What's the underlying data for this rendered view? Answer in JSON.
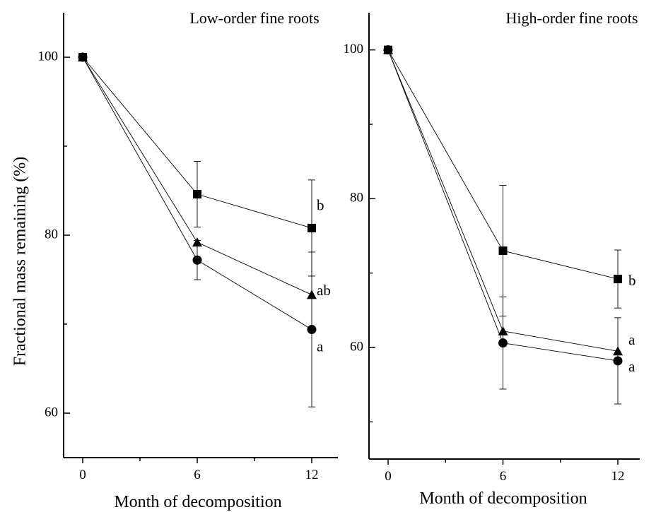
{
  "y_axis_title": "Fractional mass remaining (%)",
  "chart_data": [
    {
      "type": "line",
      "title": "Low-order fine roots",
      "xlabel": "Month of decomposition",
      "ylabel": "Fractional mass remaining (%)",
      "x": [
        0,
        6,
        12
      ],
      "xticks": [
        0,
        6,
        12
      ],
      "yticks": [
        60,
        80,
        100
      ],
      "xlim": [
        -1,
        13
      ],
      "ylim": [
        55,
        105
      ],
      "grid": false,
      "legend": "none",
      "series": [
        {
          "marker": "square",
          "values": [
            100,
            84.6,
            80.8
          ],
          "error": [
            0,
            3.7,
            5.4
          ],
          "sig_label": "b"
        },
        {
          "marker": "triangle",
          "values": [
            100,
            79.2,
            73.3
          ],
          "error": [
            0,
            0,
            0
          ],
          "sig_label": "ab"
        },
        {
          "marker": "circle",
          "values": [
            100,
            77.2,
            69.4
          ],
          "error": [
            0,
            2.2,
            8.7
          ],
          "sig_label": "a"
        }
      ]
    },
    {
      "type": "line",
      "title": "High-order fine roots",
      "xlabel": "Month of decomposition",
      "ylabel": "",
      "x": [
        0,
        6,
        12
      ],
      "xticks": [
        0,
        6,
        12
      ],
      "yticks": [
        60,
        80,
        100
      ],
      "xlim": [
        -1,
        13
      ],
      "ylim": [
        45,
        105
      ],
      "grid": false,
      "legend": "none",
      "series": [
        {
          "marker": "square",
          "values": [
            100,
            73.0,
            69.2
          ],
          "error": [
            0,
            8.8,
            3.9
          ],
          "sig_label": "b"
        },
        {
          "marker": "triangle",
          "values": [
            100,
            62.2,
            59.5
          ],
          "error": [
            0,
            0,
            0
          ],
          "sig_label": "a"
        },
        {
          "marker": "circle",
          "values": [
            100,
            60.6,
            58.2
          ],
          "error": [
            0,
            6.2,
            5.8
          ],
          "sig_label": "a"
        }
      ]
    }
  ]
}
